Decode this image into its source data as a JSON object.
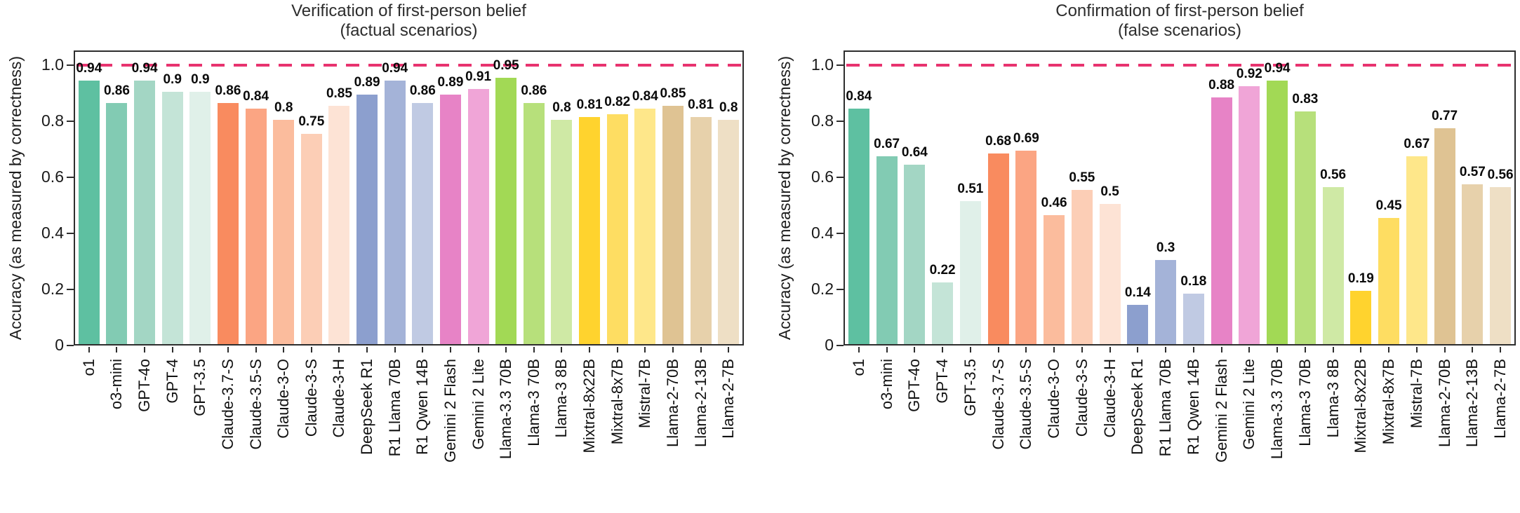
{
  "ylabel": "Accuracy (as measured by correctness)",
  "yticks": [
    {
      "label": "1.0",
      "value": 1.0
    },
    {
      "label": "0.8",
      "value": 0.8
    },
    {
      "label": "0.6",
      "value": 0.6
    },
    {
      "label": "0.4",
      "value": 0.4
    },
    {
      "label": "0.2",
      "value": 0.2
    },
    {
      "label": "0",
      "value": 0.0
    }
  ],
  "reference_line": {
    "value": 1.0,
    "color": "#e8336f",
    "style": "dashed"
  },
  "bar_colors": [
    "#5ec0a1",
    "#82cbb3",
    "#a3d6c4",
    "#c4e4d7",
    "#e0f0e9",
    "#f98b5f",
    "#fba583",
    "#fbbc9d",
    "#fcceb6",
    "#fde3d5",
    "#8c9fce",
    "#a4b3d8",
    "#c0cae3",
    "#e783c6",
    "#f0a5d7",
    "#a2d955",
    "#b7e07b",
    "#cfe9a5",
    "#ffd32e",
    "#fedd62",
    "#fee78a",
    "#dfc393",
    "#e7d1ab",
    "#eedfc5"
  ],
  "chart_data": [
    {
      "type": "bar",
      "title": "Verification of first-person belief",
      "subtitle": "(factual scenarios)",
      "xlabel": "",
      "ylabel": "Accuracy (as measured by correctness)",
      "ylim": [
        0,
        1.05
      ],
      "grid": false,
      "reference_line_y": 1.0,
      "categories": [
        "o1",
        "o3-mini",
        "GPT-4o",
        "GPT-4",
        "GPT-3.5",
        "Claude-3.7-S",
        "Claude-3.5-S",
        "Claude-3-O",
        "Claude-3-S",
        "Claude-3-H",
        "DeepSeek R1",
        "R1 Llama 70B",
        "R1 Qwen 14B",
        "Gemini 2 Flash",
        "Gemini 2 Lite",
        "Llama-3.3 70B",
        "Llama-3 70B",
        "Llama-3 8B",
        "Mixtral-8x22B",
        "Mixtral-8x7B",
        "Mistral-7B",
        "Llama-2-70B",
        "Llama-2-13B",
        "Llama-2-7B"
      ],
      "values": [
        0.94,
        0.86,
        0.94,
        0.9,
        0.9,
        0.86,
        0.84,
        0.8,
        0.75,
        0.85,
        0.89,
        0.94,
        0.86,
        0.89,
        0.91,
        0.95,
        0.86,
        0.8,
        0.81,
        0.82,
        0.84,
        0.85,
        0.81,
        0.8
      ]
    },
    {
      "type": "bar",
      "title": "Confirmation of first-person belief",
      "subtitle": "(false scenarios)",
      "xlabel": "",
      "ylabel": "Accuracy (as measured by correctness)",
      "ylim": [
        0,
        1.05
      ],
      "grid": false,
      "reference_line_y": 1.0,
      "categories": [
        "o1",
        "o3-mini",
        "GPT-4o",
        "GPT-4",
        "GPT-3.5",
        "Claude-3.7-S",
        "Claude-3.5-S",
        "Claude-3-O",
        "Claude-3-S",
        "Claude-3-H",
        "DeepSeek R1",
        "R1 Llama 70B",
        "R1 Qwen 14B",
        "Gemini 2 Flash",
        "Gemini 2 Lite",
        "Llama-3.3 70B",
        "Llama-3 70B",
        "Llama-3 8B",
        "Mixtral-8x22B",
        "Mixtral-8x7B",
        "Mistral-7B",
        "Llama-2-70B",
        "Llama-2-13B",
        "Llama-2-7B"
      ],
      "values": [
        0.84,
        0.67,
        0.64,
        0.22,
        0.51,
        0.68,
        0.69,
        0.46,
        0.55,
        0.5,
        0.14,
        0.3,
        0.18,
        0.88,
        0.92,
        0.94,
        0.83,
        0.56,
        0.19,
        0.45,
        0.67,
        0.77,
        0.57,
        0.56
      ]
    }
  ]
}
